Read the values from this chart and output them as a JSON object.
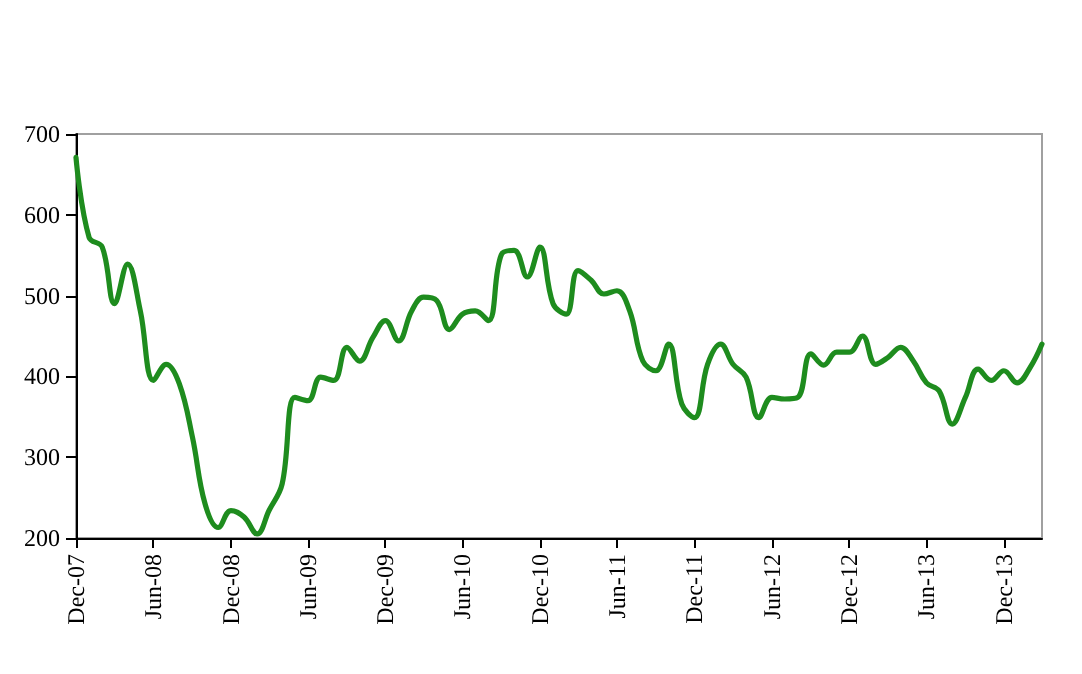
{
  "chart_data": {
    "type": "line",
    "color": "#1e8c1e",
    "line_style": "solid",
    "marker": "none",
    "grid": false,
    "x": [
      "2007-12",
      "2008-01",
      "2008-02",
      "2008-03",
      "2008-04",
      "2008-05",
      "2008-06",
      "2008-07",
      "2008-08",
      "2008-09",
      "2008-10",
      "2008-11",
      "2008-12",
      "2009-01",
      "2009-02",
      "2009-03",
      "2009-04",
      "2009-05",
      "2009-06",
      "2009-07",
      "2009-08",
      "2009-09",
      "2009-10",
      "2009-11",
      "2009-12",
      "2010-01",
      "2010-02",
      "2010-03",
      "2010-04",
      "2010-05",
      "2010-06",
      "2010-07",
      "2010-08",
      "2010-09",
      "2010-10",
      "2010-11",
      "2010-12",
      "2011-01",
      "2011-02",
      "2011-03",
      "2011-04",
      "2011-05",
      "2011-06",
      "2011-07",
      "2011-08",
      "2011-09",
      "2011-10",
      "2011-11",
      "2011-12",
      "2012-01",
      "2012-02",
      "2012-03",
      "2012-04",
      "2012-05",
      "2012-06",
      "2012-07",
      "2012-08",
      "2012-09",
      "2012-10",
      "2012-11",
      "2012-12",
      "2013-01",
      "2013-02",
      "2013-03",
      "2013-04",
      "2013-05",
      "2013-06",
      "2013-07",
      "2013-08",
      "2013-09",
      "2013-10",
      "2013-11",
      "2013-12",
      "2014-01",
      "2014-02",
      "2014-03"
    ],
    "values": [
      671,
      572,
      560,
      490,
      539,
      481,
      395,
      415,
      391,
      325,
      242,
      213,
      234,
      226,
      205,
      234,
      267,
      374,
      370,
      399,
      395,
      436,
      419,
      448,
      469,
      444,
      481,
      498,
      494,
      458,
      477,
      481,
      469,
      551,
      556,
      523,
      560,
      490,
      477,
      531,
      519,
      502,
      506,
      481,
      419,
      407,
      440,
      366,
      349,
      415,
      440,
      415,
      399,
      349,
      374,
      372,
      374,
      428,
      414,
      430,
      430,
      450,
      415,
      423,
      436,
      419,
      392,
      382,
      341,
      374,
      409,
      395,
      407,
      392,
      411,
      440
    ],
    "xlim": [
      "2007-12",
      "2014-03"
    ],
    "xticks": [
      {
        "value": "2007-12",
        "label": "Dec-07"
      },
      {
        "value": "2008-06",
        "label": "Jun-08"
      },
      {
        "value": "2008-12",
        "label": "Dec-08"
      },
      {
        "value": "2009-06",
        "label": "Jun-09"
      },
      {
        "value": "2009-12",
        "label": "Dec-09"
      },
      {
        "value": "2010-06",
        "label": "Jun-10"
      },
      {
        "value": "2010-12",
        "label": "Dec-10"
      },
      {
        "value": "2011-06",
        "label": "Jun-11"
      },
      {
        "value": "2011-12",
        "label": "Dec-11"
      },
      {
        "value": "2012-06",
        "label": "Jun-12"
      },
      {
        "value": "2012-12",
        "label": "Dec-12"
      },
      {
        "value": "2013-06",
        "label": "Jun-13"
      },
      {
        "value": "2013-12",
        "label": "Dec-13"
      }
    ],
    "ylim": [
      200,
      700
    ],
    "yticks": [
      200,
      300,
      400,
      500,
      600,
      700
    ]
  }
}
